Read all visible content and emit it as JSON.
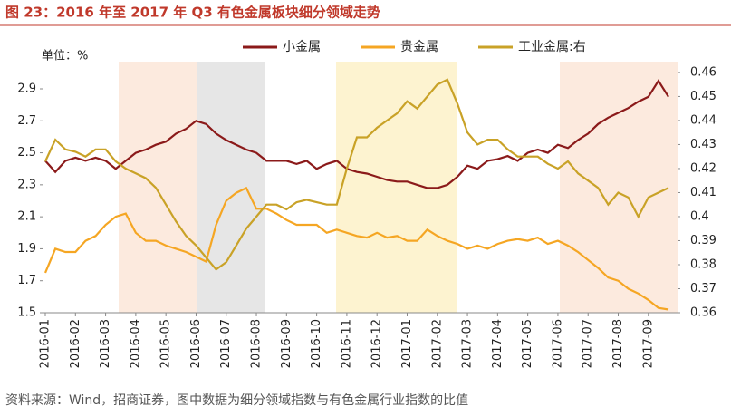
{
  "chart_data": {
    "type": "line",
    "title": "图 23：2016 年至 2017 年 Q3 有色金属板块细分领域走势",
    "y_label": "单位：%",
    "source": "资料来源：Wind，招商证券，图中数据为细分领域指数与有色金属行业指数的比值",
    "categories": [
      "2016-01",
      null,
      null,
      "2016-02",
      null,
      null,
      "2016-03",
      null,
      null,
      "2016-04",
      null,
      null,
      "2016-05",
      null,
      null,
      "2016-06",
      null,
      null,
      "2016-07",
      null,
      null,
      "2016-08",
      null,
      null,
      "2016-09",
      null,
      null,
      "2016-10",
      null,
      null,
      "2016-11",
      null,
      null,
      "2016-12",
      null,
      null,
      "2017-01",
      null,
      null,
      "2017-02",
      null,
      null,
      "2017-03",
      null,
      null,
      "2017-04",
      null,
      null,
      "2017-05",
      null,
      null,
      "2017-06",
      null,
      null,
      "2017-07",
      null,
      null,
      "2017-08",
      null,
      null,
      "2017-09",
      null,
      null
    ],
    "series": [
      {
        "name": "小金属",
        "color": "#8b1a1a",
        "values": [
          2.45,
          2.38,
          2.45,
          2.47,
          2.45,
          2.47,
          2.45,
          2.4,
          2.45,
          2.5,
          2.52,
          2.55,
          2.57,
          2.62,
          2.65,
          2.7,
          2.68,
          2.62,
          2.58,
          2.55,
          2.52,
          2.5,
          2.45,
          2.45,
          2.45,
          2.43,
          2.45,
          2.4,
          2.43,
          2.45,
          2.4,
          2.38,
          2.37,
          2.35,
          2.33,
          2.32,
          2.32,
          2.3,
          2.28,
          2.28,
          2.3,
          2.35,
          2.42,
          2.4,
          2.45,
          2.46,
          2.48,
          2.45,
          2.5,
          2.52,
          2.5,
          2.55,
          2.53,
          2.58,
          2.62,
          2.68,
          2.72,
          2.75,
          2.78,
          2.82,
          2.85,
          2.95,
          2.85
        ]
      },
      {
        "name": "贵金属",
        "color": "#f5a623",
        "values": [
          1.75,
          1.9,
          1.88,
          1.88,
          1.95,
          1.98,
          2.05,
          2.1,
          2.12,
          2.0,
          1.95,
          1.95,
          1.92,
          1.9,
          1.88,
          1.85,
          1.82,
          2.05,
          2.2,
          2.25,
          2.28,
          2.15,
          2.15,
          2.12,
          2.08,
          2.05,
          2.05,
          2.05,
          2.0,
          2.02,
          2.0,
          1.98,
          1.97,
          2.0,
          1.97,
          1.98,
          1.95,
          1.95,
          2.02,
          1.98,
          1.95,
          1.93,
          1.9,
          1.92,
          1.9,
          1.93,
          1.95,
          1.96,
          1.95,
          1.97,
          1.93,
          1.95,
          1.92,
          1.88,
          1.83,
          1.78,
          1.72,
          1.7,
          1.65,
          1.62,
          1.58,
          1.53,
          1.52
        ]
      },
      {
        "name": "工业金属:右",
        "color": "#c9a227",
        "axis": "y2",
        "values": [
          0.423,
          0.432,
          0.428,
          0.427,
          0.425,
          0.428,
          0.428,
          0.423,
          0.42,
          0.418,
          0.416,
          0.412,
          0.405,
          0.398,
          0.392,
          0.388,
          0.383,
          0.378,
          0.381,
          0.388,
          0.395,
          0.4,
          0.405,
          0.405,
          0.403,
          0.406,
          0.407,
          0.406,
          0.405,
          0.405,
          0.42,
          0.433,
          0.433,
          0.437,
          0.44,
          0.443,
          0.448,
          0.445,
          0.45,
          0.455,
          0.457,
          0.447,
          0.435,
          0.43,
          0.432,
          0.432,
          0.428,
          0.425,
          0.425,
          0.425,
          0.422,
          0.42,
          0.423,
          0.418,
          0.415,
          0.412,
          0.405,
          0.41,
          0.408,
          0.4,
          0.408,
          0.41,
          0.412
        ]
      }
    ],
    "ylim": [
      1.5,
      3.07
    ],
    "yticks": [
      1.5,
      1.7,
      1.9,
      2.1,
      2.3,
      2.5,
      2.7,
      2.9
    ],
    "y2lim": [
      0.36,
      0.4645
    ],
    "y2ticks": [
      0.36,
      0.37,
      0.38,
      0.39,
      0.4,
      0.41,
      0.42,
      0.43,
      0.44,
      0.45,
      0.46
    ]
  }
}
